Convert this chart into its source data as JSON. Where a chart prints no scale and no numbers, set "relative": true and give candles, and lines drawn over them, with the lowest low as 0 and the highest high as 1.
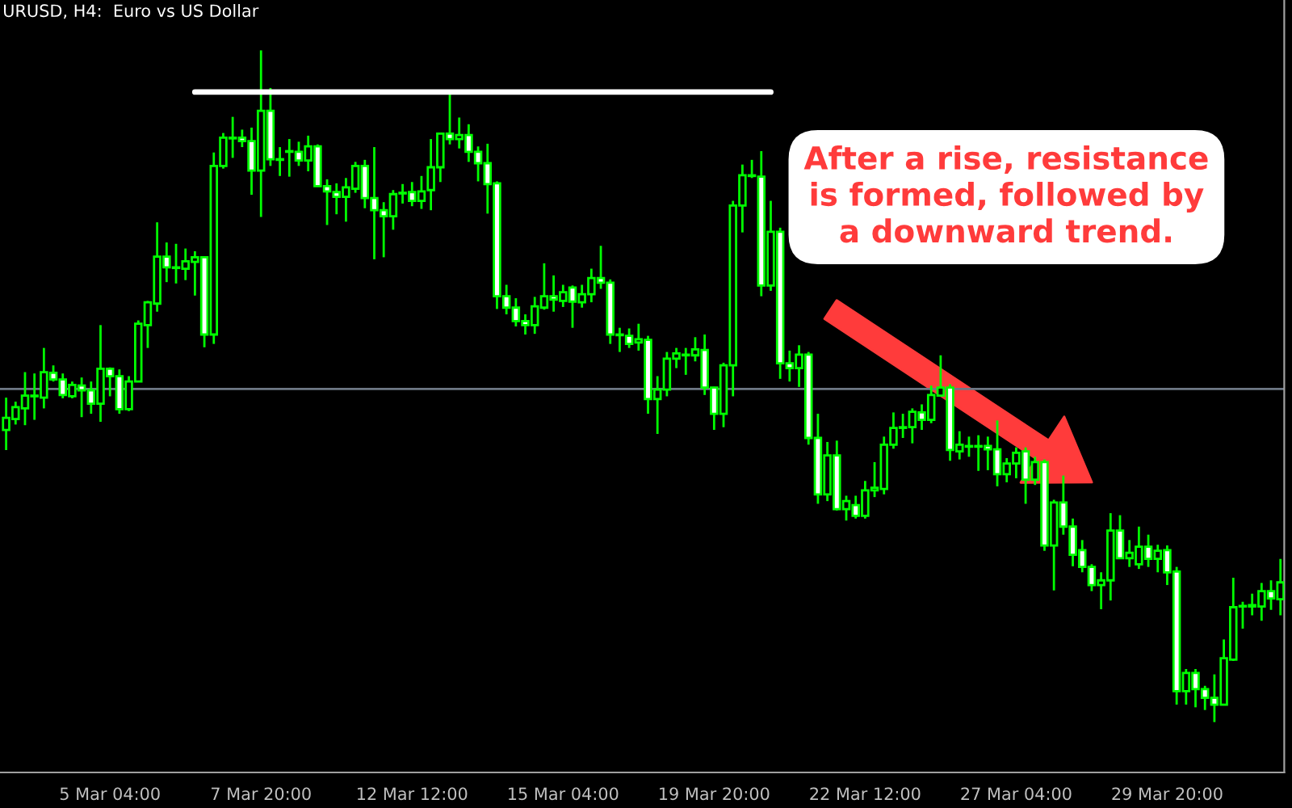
{
  "chart_data": {
    "type": "candlestick",
    "title": "URUSD, H4:  Euro vs US Dollar",
    "relative": true,
    "color": "#00ff00",
    "legend": false,
    "grid": false,
    "categories": [
      null,
      null,
      null,
      null,
      null,
      null,
      null,
      null,
      null,
      null,
      null,
      "5 Mar 04:00",
      null,
      null,
      null,
      null,
      null,
      null,
      null,
      null,
      null,
      null,
      null,
      null,
      null,
      null,
      null,
      "7 Mar 20:00",
      null,
      null,
      null,
      null,
      null,
      null,
      null,
      null,
      null,
      null,
      null,
      null,
      null,
      null,
      null,
      "12 Mar 12:00",
      null,
      null,
      null,
      null,
      null,
      null,
      null,
      null,
      null,
      null,
      null,
      null,
      null,
      null,
      null,
      "15 Mar 04:00",
      null,
      null,
      null,
      null,
      null,
      null,
      null,
      null,
      null,
      null,
      null,
      null,
      null,
      null,
      null,
      "19 Mar 20:00",
      null,
      null,
      null,
      null,
      null,
      null,
      null,
      null,
      null,
      null,
      null,
      null,
      null,
      null,
      null,
      "22 Mar 12:00",
      null,
      null,
      null,
      null,
      null,
      null,
      null,
      null,
      null,
      null,
      null,
      null,
      null,
      null,
      null,
      "27 Mar 04:00",
      null,
      null,
      null,
      null,
      null,
      null,
      null,
      null,
      null,
      null,
      null,
      null,
      null,
      null,
      null,
      "29 Mar 20:00",
      null,
      null,
      null,
      null,
      null,
      null,
      null,
      null,
      null,
      null,
      null,
      null
    ],
    "ohlc": [
      [
        0.435,
        0.483,
        0.405,
        0.453
      ],
      [
        0.451,
        0.477,
        0.443,
        0.469
      ],
      [
        0.467,
        0.521,
        0.442,
        0.486
      ],
      [
        0.485,
        0.519,
        0.45,
        0.486
      ],
      [
        0.483,
        0.557,
        0.467,
        0.521
      ],
      [
        0.52,
        0.531,
        0.507,
        0.51
      ],
      [
        0.51,
        0.519,
        0.482,
        0.487
      ],
      [
        0.485,
        0.507,
        0.482,
        0.502
      ],
      [
        0.501,
        0.513,
        0.454,
        0.494
      ],
      [
        0.494,
        0.507,
        0.459,
        0.474
      ],
      [
        0.474,
        0.591,
        0.447,
        0.526
      ],
      [
        0.526,
        0.528,
        0.485,
        0.515
      ],
      [
        0.515,
        0.525,
        0.459,
        0.466
      ],
      [
        0.466,
        0.515,
        0.463,
        0.507
      ],
      [
        0.507,
        0.598,
        0.506,
        0.593
      ],
      [
        0.591,
        0.627,
        0.557,
        0.625
      ],
      [
        0.623,
        0.744,
        0.611,
        0.693
      ],
      [
        0.693,
        0.714,
        0.655,
        0.677
      ],
      [
        0.677,
        0.712,
        0.653,
        0.676
      ],
      [
        0.675,
        0.705,
        0.658,
        0.686
      ],
      [
        0.685,
        0.701,
        0.635,
        0.692
      ],
      [
        0.692,
        0.693,
        0.558,
        0.577
      ],
      [
        0.577,
        0.848,
        0.563,
        0.828
      ],
      [
        0.828,
        0.877,
        0.824,
        0.87
      ],
      [
        0.869,
        0.901,
        0.84,
        0.87
      ],
      [
        0.87,
        0.882,
        0.856,
        0.865
      ],
      [
        0.865,
        0.885,
        0.785,
        0.821
      ],
      [
        0.821,
        1.0,
        0.752,
        0.91
      ],
      [
        0.91,
        0.944,
        0.828,
        0.838
      ],
      [
        0.838,
        0.856,
        0.813,
        0.837
      ],
      [
        0.849,
        0.868,
        0.812,
        0.85
      ],
      [
        0.849,
        0.864,
        0.828,
        0.836
      ],
      [
        0.836,
        0.873,
        0.82,
        0.857
      ],
      [
        0.857,
        0.86,
        0.797,
        0.798
      ],
      [
        0.798,
        0.808,
        0.74,
        0.79
      ],
      [
        0.789,
        0.802,
        0.756,
        0.782
      ],
      [
        0.782,
        0.81,
        0.745,
        0.796
      ],
      [
        0.794,
        0.834,
        0.788,
        0.828
      ],
      [
        0.828,
        0.837,
        0.765,
        0.78
      ],
      [
        0.78,
        0.856,
        0.689,
        0.762
      ],
      [
        0.762,
        0.774,
        0.692,
        0.753
      ],
      [
        0.753,
        0.792,
        0.733,
        0.786
      ],
      [
        0.787,
        0.801,
        0.772,
        0.788
      ],
      [
        0.789,
        0.804,
        0.768,
        0.776
      ],
      [
        0.776,
        0.813,
        0.764,
        0.79
      ],
      [
        0.792,
        0.868,
        0.762,
        0.826
      ],
      [
        0.826,
        0.877,
        0.804,
        0.876
      ],
      [
        0.876,
        0.936,
        0.86,
        0.868
      ],
      [
        0.868,
        0.9,
        0.854,
        0.874
      ],
      [
        0.874,
        0.89,
        0.834,
        0.849
      ],
      [
        0.849,
        0.857,
        0.805,
        0.832
      ],
      [
        0.832,
        0.861,
        0.757,
        0.801
      ],
      [
        0.802,
        0.805,
        0.615,
        0.634
      ],
      [
        0.634,
        0.651,
        0.607,
        0.617
      ],
      [
        0.617,
        0.631,
        0.589,
        0.597
      ],
      [
        0.597,
        0.607,
        0.577,
        0.591
      ],
      [
        0.591,
        0.633,
        0.578,
        0.619
      ],
      [
        0.617,
        0.683,
        0.614,
        0.634
      ],
      [
        0.634,
        0.665,
        0.611,
        0.629
      ],
      [
        0.627,
        0.651,
        0.618,
        0.64
      ],
      [
        0.647,
        0.65,
        0.587,
        0.626
      ],
      [
        0.625,
        0.651,
        0.617,
        0.637
      ],
      [
        0.637,
        0.675,
        0.625,
        0.661
      ],
      [
        0.661,
        0.709,
        0.645,
        0.654
      ],
      [
        0.654,
        0.659,
        0.563,
        0.577
      ],
      [
        0.577,
        0.587,
        0.551,
        0.576
      ],
      [
        0.575,
        0.586,
        0.557,
        0.563
      ],
      [
        0.565,
        0.593,
        0.553,
        0.57
      ],
      [
        0.569,
        0.575,
        0.459,
        0.481
      ],
      [
        0.481,
        0.515,
        0.429,
        0.495
      ],
      [
        0.495,
        0.551,
        0.485,
        0.541
      ],
      [
        0.541,
        0.557,
        0.527,
        0.549
      ],
      [
        0.546,
        0.557,
        0.517,
        0.547
      ],
      [
        0.546,
        0.573,
        0.537,
        0.555
      ],
      [
        0.554,
        0.577,
        0.487,
        0.498
      ],
      [
        0.498,
        0.499,
        0.435,
        0.459
      ],
      [
        0.459,
        0.535,
        0.439,
        0.531
      ],
      [
        0.531,
        0.776,
        0.485,
        0.769
      ],
      [
        0.769,
        0.83,
        0.729,
        0.814
      ],
      [
        0.814,
        0.837,
        0.81,
        0.813
      ],
      [
        0.812,
        0.85,
        0.634,
        0.65
      ],
      [
        0.65,
        0.776,
        0.642,
        0.73
      ],
      [
        0.73,
        0.736,
        0.511,
        0.534
      ],
      [
        0.534,
        0.553,
        0.507,
        0.527
      ],
      [
        0.527,
        0.561,
        0.499,
        0.547
      ],
      [
        0.547,
        0.551,
        0.413,
        0.423
      ],
      [
        0.423,
        0.459,
        0.325,
        0.339
      ],
      [
        0.339,
        0.417,
        0.329,
        0.397
      ],
      [
        0.397,
        0.419,
        0.315,
        0.317
      ],
      [
        0.317,
        0.337,
        0.3,
        0.329
      ],
      [
        0.323,
        0.337,
        0.303,
        0.307
      ],
      [
        0.307,
        0.359,
        0.303,
        0.345
      ],
      [
        0.345,
        0.387,
        0.335,
        0.349
      ],
      [
        0.347,
        0.425,
        0.339,
        0.413
      ],
      [
        0.413,
        0.461,
        0.407,
        0.438
      ],
      [
        0.438,
        0.459,
        0.423,
        0.439
      ],
      [
        0.439,
        0.467,
        0.415,
        0.462
      ],
      [
        0.461,
        0.473,
        0.435,
        0.45
      ],
      [
        0.45,
        0.501,
        0.445,
        0.487
      ],
      [
        0.486,
        0.546,
        0.485,
        0.498
      ],
      [
        0.498,
        0.503,
        0.389,
        0.405
      ],
      [
        0.403,
        0.433,
        0.391,
        0.413
      ],
      [
        0.411,
        0.425,
        0.395,
        0.41
      ],
      [
        0.41,
        0.427,
        0.374,
        0.411
      ],
      [
        0.411,
        0.425,
        0.375,
        0.406
      ],
      [
        0.406,
        0.449,
        0.351,
        0.369
      ],
      [
        0.369,
        0.393,
        0.357,
        0.385
      ],
      [
        0.385,
        0.409,
        0.363,
        0.401
      ],
      [
        0.403,
        0.409,
        0.325,
        0.361
      ],
      [
        0.361,
        0.395,
        0.353,
        0.387
      ],
      [
        0.387,
        0.391,
        0.255,
        0.263
      ],
      [
        0.263,
        0.331,
        0.196,
        0.327
      ],
      [
        0.327,
        0.367,
        0.279,
        0.291
      ],
      [
        0.291,
        0.303,
        0.232,
        0.249
      ],
      [
        0.256,
        0.271,
        0.223,
        0.231
      ],
      [
        0.231,
        0.235,
        0.195,
        0.204
      ],
      [
        0.204,
        0.223,
        0.168,
        0.211
      ],
      [
        0.211,
        0.311,
        0.181,
        0.285
      ],
      [
        0.285,
        0.308,
        0.243,
        0.244
      ],
      [
        0.244,
        0.271,
        0.231,
        0.252
      ],
      [
        0.235,
        0.291,
        0.228,
        0.261
      ],
      [
        0.261,
        0.279,
        0.231,
        0.243
      ],
      [
        0.243,
        0.264,
        0.223,
        0.255
      ],
      [
        0.256,
        0.263,
        0.204,
        0.223
      ],
      [
        0.224,
        0.231,
        0.026,
        0.046
      ],
      [
        0.046,
        0.079,
        0.026,
        0.073
      ],
      [
        0.073,
        0.079,
        0.022,
        0.049
      ],
      [
        0.049,
        0.054,
        0.018,
        0.036
      ],
      [
        0.036,
        0.071,
        0.0,
        0.026
      ],
      [
        0.026,
        0.123,
        0.025,
        0.095
      ],
      [
        0.093,
        0.215,
        0.091,
        0.171
      ],
      [
        0.172,
        0.179,
        0.139,
        0.173
      ],
      [
        0.172,
        0.191,
        0.159,
        0.174
      ],
      [
        0.172,
        0.207,
        0.151,
        0.195
      ],
      [
        0.195,
        0.211,
        0.167,
        0.184
      ],
      [
        0.183,
        0.243,
        0.159,
        0.208
      ]
    ],
    "series": [
      {
        "type": "line",
        "color": "#ffffff",
        "values": [
          null,
          null,
          null,
          null,
          null,
          null,
          null,
          null,
          null,
          null,
          null,
          null,
          null,
          null,
          null,
          null,
          null,
          null,
          null,
          null,
          0.938,
          0.938,
          0.938,
          0.938,
          0.938,
          0.938,
          0.938,
          0.938,
          0.938,
          0.938,
          0.938,
          0.938,
          0.938,
          0.938,
          0.938,
          0.938,
          0.938,
          0.938,
          0.938,
          0.938,
          0.938,
          0.938,
          0.938,
          0.938,
          0.938,
          0.938,
          0.938,
          0.938,
          0.938,
          0.938,
          0.938,
          0.938,
          0.938,
          0.938,
          0.938,
          0.938,
          0.938,
          0.938,
          0.938,
          0.938,
          0.938,
          0.938,
          0.938,
          0.938,
          0.938,
          0.938,
          0.938,
          0.938,
          0.938,
          0.938,
          0.938,
          0.938,
          0.938,
          0.938,
          0.938,
          0.938,
          0.938,
          0.938,
          0.938,
          0.938,
          0.938,
          0.938,
          null,
          null,
          null,
          null,
          null,
          null,
          null,
          null,
          null,
          null,
          null,
          null,
          null,
          null,
          null,
          null,
          null,
          null,
          null,
          null,
          null,
          null,
          null,
          null,
          null,
          null,
          null,
          null,
          null,
          null,
          null,
          null,
          null,
          null,
          null,
          null,
          null,
          null,
          null,
          null,
          null,
          null,
          null,
          null,
          null,
          null,
          null,
          null,
          null,
          null,
          null,
          null,
          null,
          null
        ]
      }
    ],
    "ref_lines": [
      {
        "axis": "y",
        "value": 0.496,
        "color": "#6e7885"
      }
    ],
    "annotations": [
      "After a rise, resistance\nis formed, followed by\na downward trend."
    ]
  }
}
